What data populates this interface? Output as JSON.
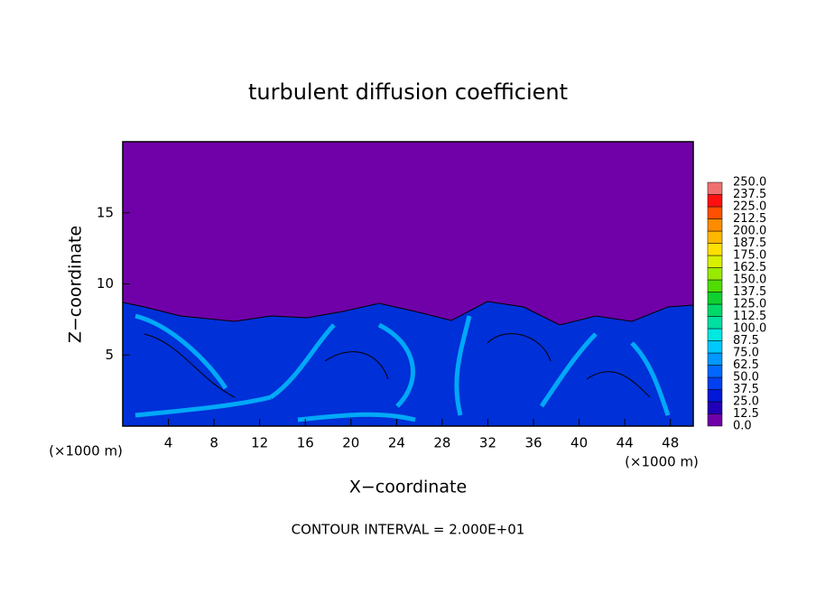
{
  "chart_data": {
    "type": "contour",
    "title": "turbulent diffusion coefficient",
    "xlabel": "X−coordinate",
    "ylabel": "Z−coordinate",
    "x_unit_left": "(×1000 m)",
    "x_unit_right": "(×1000 m)",
    "note": "CONTOUR INTERVAL = 2.000E+01",
    "xlim": [
      0,
      50
    ],
    "xticks": [
      4,
      8,
      12,
      16,
      20,
      24,
      28,
      32,
      36,
      40,
      44,
      48
    ],
    "ylim": [
      0,
      20
    ],
    "yticks": [
      5,
      10,
      15
    ],
    "colorbar": {
      "levels": [
        {
          "value": 0,
          "label": "0.0"
        },
        {
          "value": 12.5,
          "label": "12.5"
        },
        {
          "value": 25,
          "label": "25.0"
        },
        {
          "value": 37.5,
          "label": "37.5"
        },
        {
          "value": 50,
          "label": "50.0"
        },
        {
          "value": 62.5,
          "label": "62.5"
        },
        {
          "value": 75,
          "label": "75.0"
        },
        {
          "value": 87.5,
          "label": "87.5"
        },
        {
          "value": 100,
          "label": "100.0"
        },
        {
          "value": 112.5,
          "label": "112.5"
        },
        {
          "value": 125,
          "label": "125.0"
        },
        {
          "value": 137.5,
          "label": "137.5"
        },
        {
          "value": 150,
          "label": "150.0"
        },
        {
          "value": 162.5,
          "label": "162.5"
        },
        {
          "value": 175,
          "label": "175.0"
        },
        {
          "value": 187.5,
          "label": "187.5"
        },
        {
          "value": 200,
          "label": "200.0"
        },
        {
          "value": 212.5,
          "label": "212.5"
        },
        {
          "value": 225,
          "label": "225.0"
        },
        {
          "value": 237.5,
          "label": "237.5"
        },
        {
          "value": 250,
          "label": "250.0"
        }
      ],
      "colors": [
        "#7000a8",
        "#2200b8",
        "#0018d8",
        "#0040f0",
        "#0068ff",
        "#0098ff",
        "#00c8ff",
        "#00e8e0",
        "#00e0a0",
        "#00d868",
        "#10d030",
        "#50dc00",
        "#98ea00",
        "#d8f000",
        "#ffe000",
        "#ffb800",
        "#ff8c00",
        "#ff5000",
        "#ff1010",
        "#f07070"
      ]
    }
  }
}
